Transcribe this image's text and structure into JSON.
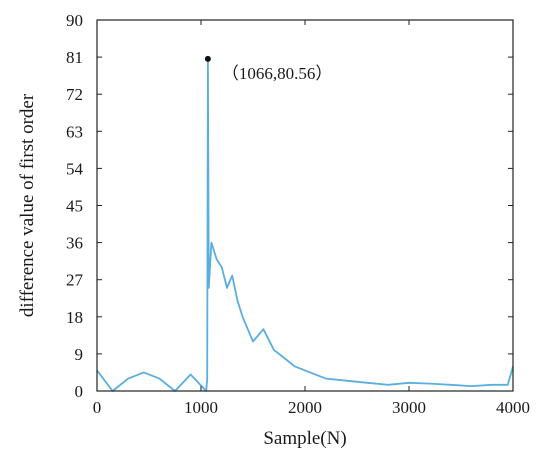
{
  "chart_data": {
    "type": "line",
    "xlabel": "Sample(N)",
    "ylabel": "difference value of first order",
    "xlim": [
      0,
      4000
    ],
    "ylim": [
      0,
      90
    ],
    "xticks": [
      0,
      1000,
      2000,
      3000,
      4000
    ],
    "yticks": [
      0,
      9,
      18,
      27,
      36,
      45,
      54,
      63,
      72,
      81,
      90
    ],
    "grid": false,
    "series_color": "#5aaee0",
    "marker_color": "#111111",
    "peak": {
      "x": 1066,
      "y": 80.56,
      "label": "（1066,80.56）"
    },
    "series": [
      {
        "x": [
          0,
          150,
          300,
          450,
          600,
          750,
          900,
          1050,
          1060,
          1066,
          1075,
          1100,
          1150,
          1200,
          1250,
          1300,
          1350,
          1400,
          1450,
          1500,
          1600,
          1700,
          1800,
          1900,
          2000,
          2200,
          2400,
          2600,
          2800,
          3000,
          3200,
          3400,
          3600,
          3800,
          3950,
          4000
        ],
        "y": [
          5,
          0,
          3,
          4.5,
          3,
          0,
          4,
          0,
          3,
          80.56,
          25,
          36,
          32,
          30,
          25,
          28,
          22,
          18,
          15,
          12,
          15,
          10,
          8,
          6,
          5,
          3,
          2.5,
          2,
          1.5,
          2,
          1.8,
          1.5,
          1.2,
          1.5,
          1.5,
          6
        ]
      }
    ]
  }
}
